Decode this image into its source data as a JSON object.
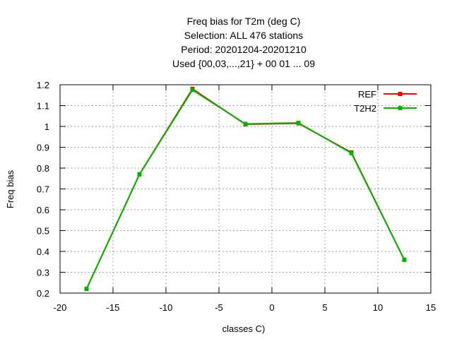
{
  "chart_data": {
    "type": "line",
    "title_lines": [
      "Freq bias  for T2m (deg C)",
      "Selection: ALL    476 stations",
      "Period: 20201204-20201210",
      "Used {00,03,...,21} + 00 01 ... 09"
    ],
    "xlabel": "classes C)",
    "ylabel": "Freq bias",
    "xlim": [
      -20,
      15
    ],
    "ylim": [
      0.2,
      1.2
    ],
    "xticks": [
      -20,
      -15,
      -10,
      -5,
      0,
      5,
      10,
      15
    ],
    "yticks": [
      0.2,
      0.3,
      0.4,
      0.5,
      0.6,
      0.7,
      0.8,
      0.9,
      1.0,
      1.1,
      1.2
    ],
    "ytick_labels": [
      "0.2",
      "0.3",
      "0.4",
      "0.5",
      "0.6",
      "0.7",
      "0.8",
      "0.9",
      "1",
      "1.1",
      "1.2"
    ],
    "grid": true,
    "legend_position": "top-right",
    "x": [
      -17.5,
      -12.5,
      -7.5,
      -2.5,
      2.5,
      7.5,
      12.5
    ],
    "series": [
      {
        "name": "REF",
        "color": "#ff0000",
        "values": [
          0.22,
          0.77,
          1.18,
          1.01,
          1.015,
          0.875,
          0.36
        ]
      },
      {
        "name": "T2H2",
        "color": "#00b400",
        "values": [
          0.22,
          0.77,
          1.175,
          1.012,
          1.017,
          0.872,
          0.36
        ]
      }
    ]
  }
}
